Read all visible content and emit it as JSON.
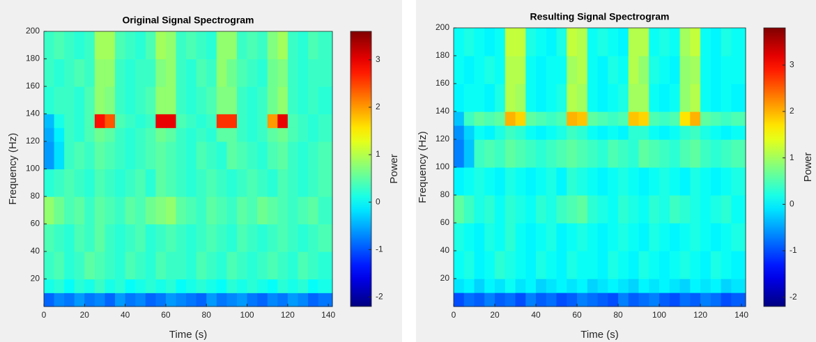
{
  "chart_data": [
    {
      "type": "heatmap",
      "title": "Original Signal Spectrogram",
      "xlabel": "Time (s)",
      "ylabel": "Frequency (Hz)",
      "xlim": [
        0,
        142
      ],
      "ylim": [
        0,
        200
      ],
      "xticks": [
        0,
        20,
        40,
        60,
        80,
        100,
        120,
        140
      ],
      "yticks": [
        20,
        40,
        60,
        80,
        100,
        120,
        140,
        160,
        180,
        200
      ],
      "x_edges": [
        0,
        5,
        10,
        15,
        20,
        25,
        30,
        35,
        40,
        45,
        50,
        55,
        60,
        65,
        70,
        75,
        80,
        85,
        90,
        95,
        100,
        105,
        110,
        115,
        120,
        125,
        130,
        135,
        142
      ],
      "y_edges": [
        0,
        10,
        20,
        40,
        60,
        80,
        100,
        120,
        130,
        140,
        160,
        180,
        200
      ],
      "colorbar": {
        "label": "Power",
        "lim": [
          -2.2,
          3.6
        ],
        "ticks": [
          -2,
          -1,
          0,
          1,
          2,
          3
        ]
      },
      "z": [
        [
          -0.9,
          -0.7,
          -0.8,
          -0.6,
          -0.8,
          -0.7,
          -0.9,
          -0.6,
          -0.8,
          -0.7,
          -0.9,
          -0.8,
          -0.6,
          -0.7,
          -0.8,
          -0.9,
          -0.6,
          -0.8,
          -0.7,
          -0.6,
          -0.8,
          -0.9,
          -0.7,
          -0.8,
          -0.6,
          -0.7,
          -0.9,
          -0.8
        ],
        [
          0.1,
          0.2,
          0,
          0.2,
          0.1,
          0.3,
          0.1,
          0.2,
          0,
          0.1,
          0.2,
          0.1,
          0.2,
          0,
          0.1,
          0.2,
          0.1,
          0,
          0.2,
          0.1,
          0.2,
          0.1,
          0,
          0.2,
          0.1,
          0.2,
          0,
          0.1
        ],
        [
          0.3,
          0.4,
          0.2,
          0.3,
          0.5,
          0.4,
          0.3,
          0.2,
          0.4,
          0.3,
          0.2,
          0.4,
          0.3,
          0.3,
          0.2,
          0.4,
          0.3,
          0.2,
          0.4,
          0.3,
          0.2,
          0.3,
          0.4,
          0.3,
          0.2,
          0.4,
          0.3,
          0.2
        ],
        [
          0.4,
          0.3,
          0.2,
          0.4,
          0.3,
          0.5,
          0.3,
          0.2,
          0.3,
          0.4,
          0.2,
          0.3,
          0.4,
          0.3,
          0.2,
          0.3,
          0.4,
          0.3,
          0.2,
          0.4,
          0.3,
          0.2,
          0.3,
          0.4,
          0.3,
          0.2,
          0.3,
          0.4
        ],
        [
          0.8,
          0.6,
          0.4,
          0.5,
          0.3,
          0.5,
          0.4,
          0.3,
          0.5,
          0.4,
          0.6,
          0.7,
          0.8,
          0.5,
          0.4,
          0.3,
          0.5,
          0.4,
          0.3,
          0.5,
          0.4,
          0.6,
          0.5,
          0.4,
          0.3,
          0.4,
          0.5,
          0.3
        ],
        [
          0.2,
          0.3,
          0.4,
          0.3,
          0.2,
          0.4,
          0.3,
          0.2,
          0.3,
          0.4,
          0.2,
          0.5,
          0.4,
          0.3,
          0.2,
          0.3,
          0.4,
          0.3,
          0.2,
          0.3,
          0.4,
          0.3,
          0.2,
          0.4,
          0.3,
          0.2,
          0.3,
          0.4
        ],
        [
          -0.6,
          -0.2,
          0.3,
          0.4,
          0.3,
          0.5,
          0.4,
          0.3,
          0.2,
          0.3,
          0.4,
          0.5,
          0.4,
          0.3,
          0.2,
          0.4,
          0.3,
          0.2,
          0.5,
          0.4,
          0.3,
          0.2,
          0.4,
          0.5,
          0.3,
          0.2,
          0.3,
          0.4
        ],
        [
          -0.5,
          -0.1,
          0.3,
          0.2,
          0.4,
          0.6,
          0.5,
          0.3,
          0.2,
          0.3,
          0.4,
          0.6,
          0.5,
          0.3,
          0.2,
          0.3,
          0.2,
          0.5,
          0.5,
          0.3,
          0.2,
          0.3,
          0.5,
          0.6,
          0.4,
          0.3,
          0.2,
          0.3
        ],
        [
          -0.4,
          0.1,
          0.3,
          0.2,
          0.4,
          2.8,
          2.4,
          0.4,
          0.3,
          0.2,
          0.3,
          3.0,
          3.0,
          0.4,
          0.3,
          0.2,
          0.3,
          2.6,
          2.6,
          0.3,
          0.2,
          0.3,
          2.0,
          3.0,
          0.4,
          0.3,
          0.2,
          0.3
        ],
        [
          0.2,
          0.3,
          0.3,
          0.2,
          0.4,
          0.8,
          0.7,
          0.3,
          0.2,
          0.3,
          0.4,
          0.8,
          0.8,
          0.3,
          0.2,
          0.3,
          0.4,
          0.7,
          0.7,
          0.3,
          0.2,
          0.3,
          0.6,
          0.8,
          0.3,
          0.2,
          0.3,
          0.2
        ],
        [
          0.3,
          0.2,
          0.3,
          0.4,
          0.3,
          0.8,
          0.8,
          0.3,
          0.2,
          0.3,
          0.3,
          0.7,
          0.8,
          0.3,
          0.2,
          0.4,
          0.3,
          0.8,
          0.6,
          0.4,
          0.3,
          0.2,
          0.6,
          0.7,
          0.3,
          0.2,
          0.3,
          0.3
        ],
        [
          0.3,
          0.4,
          0.3,
          0.2,
          0.3,
          0.9,
          0.9,
          0.4,
          0.3,
          0.2,
          0.4,
          0.9,
          0.8,
          0.3,
          0.4,
          0.3,
          0.2,
          0.8,
          0.8,
          0.3,
          0.4,
          0.3,
          0.7,
          0.9,
          0.3,
          0.2,
          0.4,
          0.3
        ]
      ]
    },
    {
      "type": "heatmap",
      "title": "Resulting Signal Spectrogram",
      "xlabel": "Time (s)",
      "ylabel": "Frequency (Hz)",
      "xlim": [
        0,
        142
      ],
      "ylim": [
        0,
        200
      ],
      "xticks": [
        0,
        20,
        40,
        60,
        80,
        100,
        120,
        140
      ],
      "yticks": [
        20,
        40,
        60,
        80,
        100,
        120,
        140,
        160,
        180,
        200
      ],
      "x_edges": [
        0,
        5,
        10,
        15,
        20,
        25,
        30,
        35,
        40,
        45,
        50,
        55,
        60,
        65,
        70,
        75,
        80,
        85,
        90,
        95,
        100,
        105,
        110,
        115,
        120,
        125,
        130,
        135,
        142
      ],
      "y_edges": [
        0,
        10,
        20,
        40,
        60,
        80,
        100,
        120,
        130,
        140,
        160,
        180,
        200
      ],
      "colorbar": {
        "label": "Power",
        "lim": [
          -2.2,
          3.8
        ],
        "ticks": [
          -2,
          -1,
          0,
          1,
          2,
          3
        ]
      },
      "z": [
        [
          -1.0,
          -0.8,
          -0.9,
          -0.7,
          -0.9,
          -0.8,
          -1.0,
          -0.7,
          -0.9,
          -0.8,
          -1.0,
          -0.9,
          -0.7,
          -0.8,
          -0.9,
          -1.0,
          -0.7,
          -0.9,
          -0.8,
          -0.7,
          -0.9,
          -1.0,
          -0.8,
          -0.9,
          -0.7,
          -0.8,
          -1.0,
          -0.9
        ],
        [
          -0.1,
          0,
          -0.2,
          0,
          -0.1,
          0.1,
          -0.1,
          0,
          -0.2,
          -0.1,
          0,
          -0.1,
          0,
          -0.2,
          -0.1,
          0,
          -0.1,
          -0.2,
          0,
          -0.1,
          0,
          -0.1,
          -0.2,
          0,
          -0.1,
          0,
          -0.2,
          -0.1
        ],
        [
          0.1,
          0.2,
          0,
          0.1,
          0.3,
          0.2,
          0.1,
          0,
          0.2,
          0.1,
          0,
          0.2,
          0.1,
          0.1,
          0,
          0.2,
          0.1,
          0,
          0.2,
          0.1,
          0,
          0.1,
          0.2,
          0.1,
          0,
          0.2,
          0.1,
          0
        ],
        [
          0.2,
          0.1,
          0,
          0.2,
          0.1,
          0.3,
          0.1,
          0,
          0.1,
          0.2,
          0,
          0.1,
          0.2,
          0.1,
          0,
          0.1,
          0.2,
          0.1,
          0,
          0.2,
          0.1,
          0,
          0.1,
          0.2,
          0.1,
          0,
          0.1,
          0.2
        ],
        [
          0.6,
          0.4,
          0.2,
          0.3,
          0.1,
          0.3,
          0.2,
          0.1,
          0.3,
          0.2,
          0.4,
          0.5,
          0.6,
          0.3,
          0.2,
          0.1,
          0.3,
          0.2,
          0.1,
          0.3,
          0.2,
          0.4,
          0.3,
          0.2,
          0.1,
          0.2,
          0.3,
          0.1
        ],
        [
          0,
          0.1,
          0.2,
          0.1,
          0,
          0.2,
          0.1,
          0,
          0.1,
          0.2,
          0,
          0.3,
          0.2,
          0.1,
          0,
          0.1,
          0.2,
          0.1,
          0,
          0.1,
          0.2,
          0.1,
          0,
          0.2,
          0.1,
          0,
          0.1,
          0.2
        ],
        [
          -0.7,
          -0.3,
          0.4,
          0.5,
          0.4,
          0.6,
          0.5,
          0.4,
          0.3,
          0.4,
          0.5,
          0.6,
          0.5,
          0.4,
          0.3,
          0.5,
          0.4,
          0.3,
          0.6,
          0.5,
          0.4,
          0.3,
          0.5,
          0.6,
          0.4,
          0.3,
          0.4,
          0.5
        ],
        [
          -0.6,
          -0.2,
          0.1,
          0,
          0.2,
          0.4,
          0.3,
          0.1,
          0,
          0.1,
          0.2,
          0.4,
          0.3,
          0.1,
          0,
          0.1,
          0,
          0.3,
          0.3,
          0.1,
          0,
          0.1,
          0.3,
          0.4,
          0.2,
          0.1,
          0,
          0.1
        ],
        [
          -0.3,
          0.4,
          0.6,
          0.5,
          0.6,
          2.0,
          1.8,
          0.6,
          0.5,
          0.4,
          0.5,
          2.0,
          1.9,
          0.6,
          0.5,
          0.4,
          0.5,
          1.9,
          1.8,
          0.5,
          0.4,
          0.5,
          1.7,
          2.0,
          0.6,
          0.5,
          0.4,
          0.5
        ],
        [
          0,
          0.1,
          0.1,
          0,
          0.2,
          1.1,
          1.0,
          0.1,
          0,
          0.1,
          0.2,
          1.1,
          1.0,
          0.1,
          0,
          0.1,
          0.2,
          1.0,
          1.0,
          0.1,
          0,
          0.1,
          0.9,
          1.1,
          0.1,
          0,
          0.1,
          0
        ],
        [
          0.1,
          0,
          0.1,
          0.2,
          0.1,
          1.1,
          1.1,
          0.1,
          0,
          0.1,
          0.1,
          1.0,
          1.1,
          0.1,
          0,
          0.2,
          0.1,
          1.1,
          0.9,
          0.2,
          0.1,
          0,
          0.9,
          1.0,
          0.1,
          0,
          0.1,
          0.1
        ],
        [
          0.1,
          0.2,
          0.1,
          0,
          0.1,
          1.2,
          1.2,
          0.2,
          0.1,
          0,
          0.2,
          1.2,
          1.1,
          0.1,
          0.2,
          0.1,
          0,
          1.1,
          1.1,
          0.1,
          0.2,
          0.1,
          1.0,
          1.2,
          0.1,
          0,
          0.2,
          0.1
        ]
      ]
    }
  ]
}
